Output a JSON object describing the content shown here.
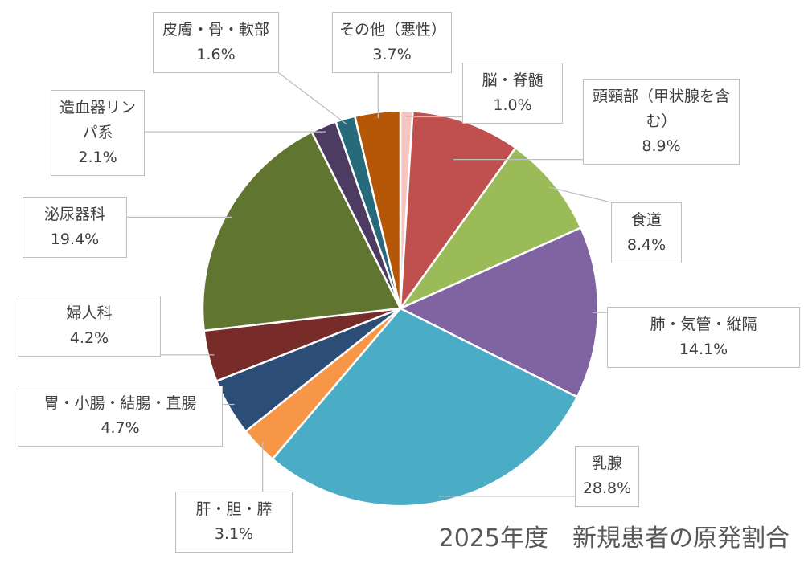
{
  "chart_data": {
    "type": "pie",
    "title": "2025年度　新規患者の原発割合",
    "categories": [
      "脳・脊髄",
      "頭頸部（甲状腺を含む）",
      "食道",
      "肺・気管・縦隔",
      "乳腺",
      "肝・胆・膵",
      "胃・小腸・結腸・直腸",
      "婦人科",
      "泌尿器科",
      "造血器リンパ系",
      "皮膚・骨・軟部",
      "その他（悪性）"
    ],
    "values": [
      1.0,
      8.9,
      8.4,
      14.1,
      28.8,
      3.1,
      4.7,
      4.2,
      19.4,
      2.1,
      1.6,
      3.7
    ],
    "value_labels": [
      "1.0%",
      "8.9%",
      "8.4%",
      "14.1%",
      "28.8%",
      "3.1%",
      "4.7%",
      "4.2%",
      "19.4%",
      "2.1%",
      "1.6%",
      "3.7%"
    ],
    "colors": [
      "#f8c6c2",
      "#c0504d",
      "#9bbb59",
      "#8064a2",
      "#4bacc6",
      "#f79646",
      "#2c4d75",
      "#772c2a",
      "#5f7530",
      "#4d3b62",
      "#276a7c",
      "#b65708"
    ]
  }
}
